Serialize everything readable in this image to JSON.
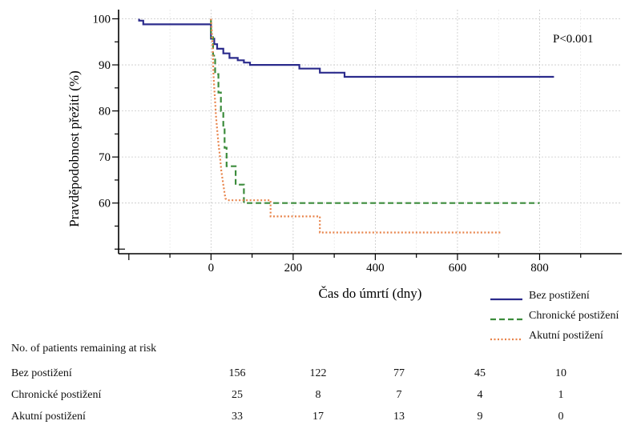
{
  "chart_data": {
    "type": "line",
    "subtype": "kaplan-meier-step",
    "xlabel": "Čas do úmrtí (dny)",
    "ylabel": "Pravděpodobnost přežití (%)",
    "annotation": "P<0.001",
    "x_ticks": [
      0,
      200,
      400,
      600,
      800
    ],
    "y_ticks": [
      60,
      70,
      80,
      90,
      100
    ],
    "xlim": [
      -225,
      1000
    ],
    "ylim": [
      49,
      102
    ],
    "grid": true,
    "legend_position": "bottom-right",
    "series": [
      {
        "name": "Bez postižení",
        "color": "#2b2b8c",
        "dash": "solid",
        "points": [
          [
            -175,
            100
          ],
          [
            -175,
            99.6
          ],
          [
            -165,
            99.6
          ],
          [
            -165,
            98.8
          ],
          [
            0,
            98.8
          ],
          [
            0,
            95.7
          ],
          [
            8,
            95.7
          ],
          [
            8,
            94.5
          ],
          [
            15,
            94.5
          ],
          [
            15,
            93.5
          ],
          [
            30,
            93.5
          ],
          [
            30,
            92.5
          ],
          [
            45,
            92.5
          ],
          [
            45,
            91.5
          ],
          [
            65,
            91.5
          ],
          [
            65,
            91
          ],
          [
            80,
            91
          ],
          [
            80,
            90.5
          ],
          [
            95,
            90.5
          ],
          [
            95,
            90
          ],
          [
            215,
            90
          ],
          [
            215,
            89.2
          ],
          [
            265,
            89.2
          ],
          [
            265,
            88.3
          ],
          [
            325,
            88.3
          ],
          [
            325,
            87.4
          ],
          [
            835,
            87.4
          ]
        ]
      },
      {
        "name": "Chronické postižení",
        "color": "#3c8c3c",
        "dash": "dashed",
        "points": [
          [
            0,
            100
          ],
          [
            0,
            96
          ],
          [
            5,
            96
          ],
          [
            5,
            92
          ],
          [
            10,
            92
          ],
          [
            10,
            88
          ],
          [
            18,
            88
          ],
          [
            18,
            84
          ],
          [
            24,
            84
          ],
          [
            24,
            80
          ],
          [
            30,
            80
          ],
          [
            30,
            76
          ],
          [
            33,
            76
          ],
          [
            33,
            72
          ],
          [
            38,
            72
          ],
          [
            38,
            68
          ],
          [
            60,
            68
          ],
          [
            60,
            64
          ],
          [
            80,
            64
          ],
          [
            80,
            60
          ],
          [
            800,
            60
          ]
        ]
      },
      {
        "name": "Akutní postižení",
        "color": "#e8834a",
        "dash": "dotted",
        "points": [
          [
            0,
            100
          ],
          [
            2,
            97
          ],
          [
            4,
            94
          ],
          [
            5,
            91
          ],
          [
            6,
            88
          ],
          [
            8,
            85
          ],
          [
            10,
            82
          ],
          [
            12,
            79
          ],
          [
            15,
            76
          ],
          [
            18,
            73
          ],
          [
            22,
            70
          ],
          [
            25,
            67
          ],
          [
            30,
            64
          ],
          [
            35,
            61
          ],
          [
            40,
            60.6
          ],
          [
            145,
            60.6
          ],
          [
            145,
            57.1
          ],
          [
            265,
            57.1
          ],
          [
            265,
            53.6
          ],
          [
            705,
            53.6
          ]
        ]
      }
    ]
  },
  "risk_table": {
    "title": "No. of patients remaining at risk",
    "rows": [
      {
        "label": "Bez postižení",
        "values": [
          "156",
          "122",
          "77",
          "45",
          "10"
        ]
      },
      {
        "label": "Chronické postižení",
        "values": [
          "25",
          "8",
          "7",
          "4",
          "1"
        ]
      },
      {
        "label": "Akutní postižení",
        "values": [
          "33",
          "17",
          "13",
          "9",
          "0"
        ]
      }
    ]
  }
}
